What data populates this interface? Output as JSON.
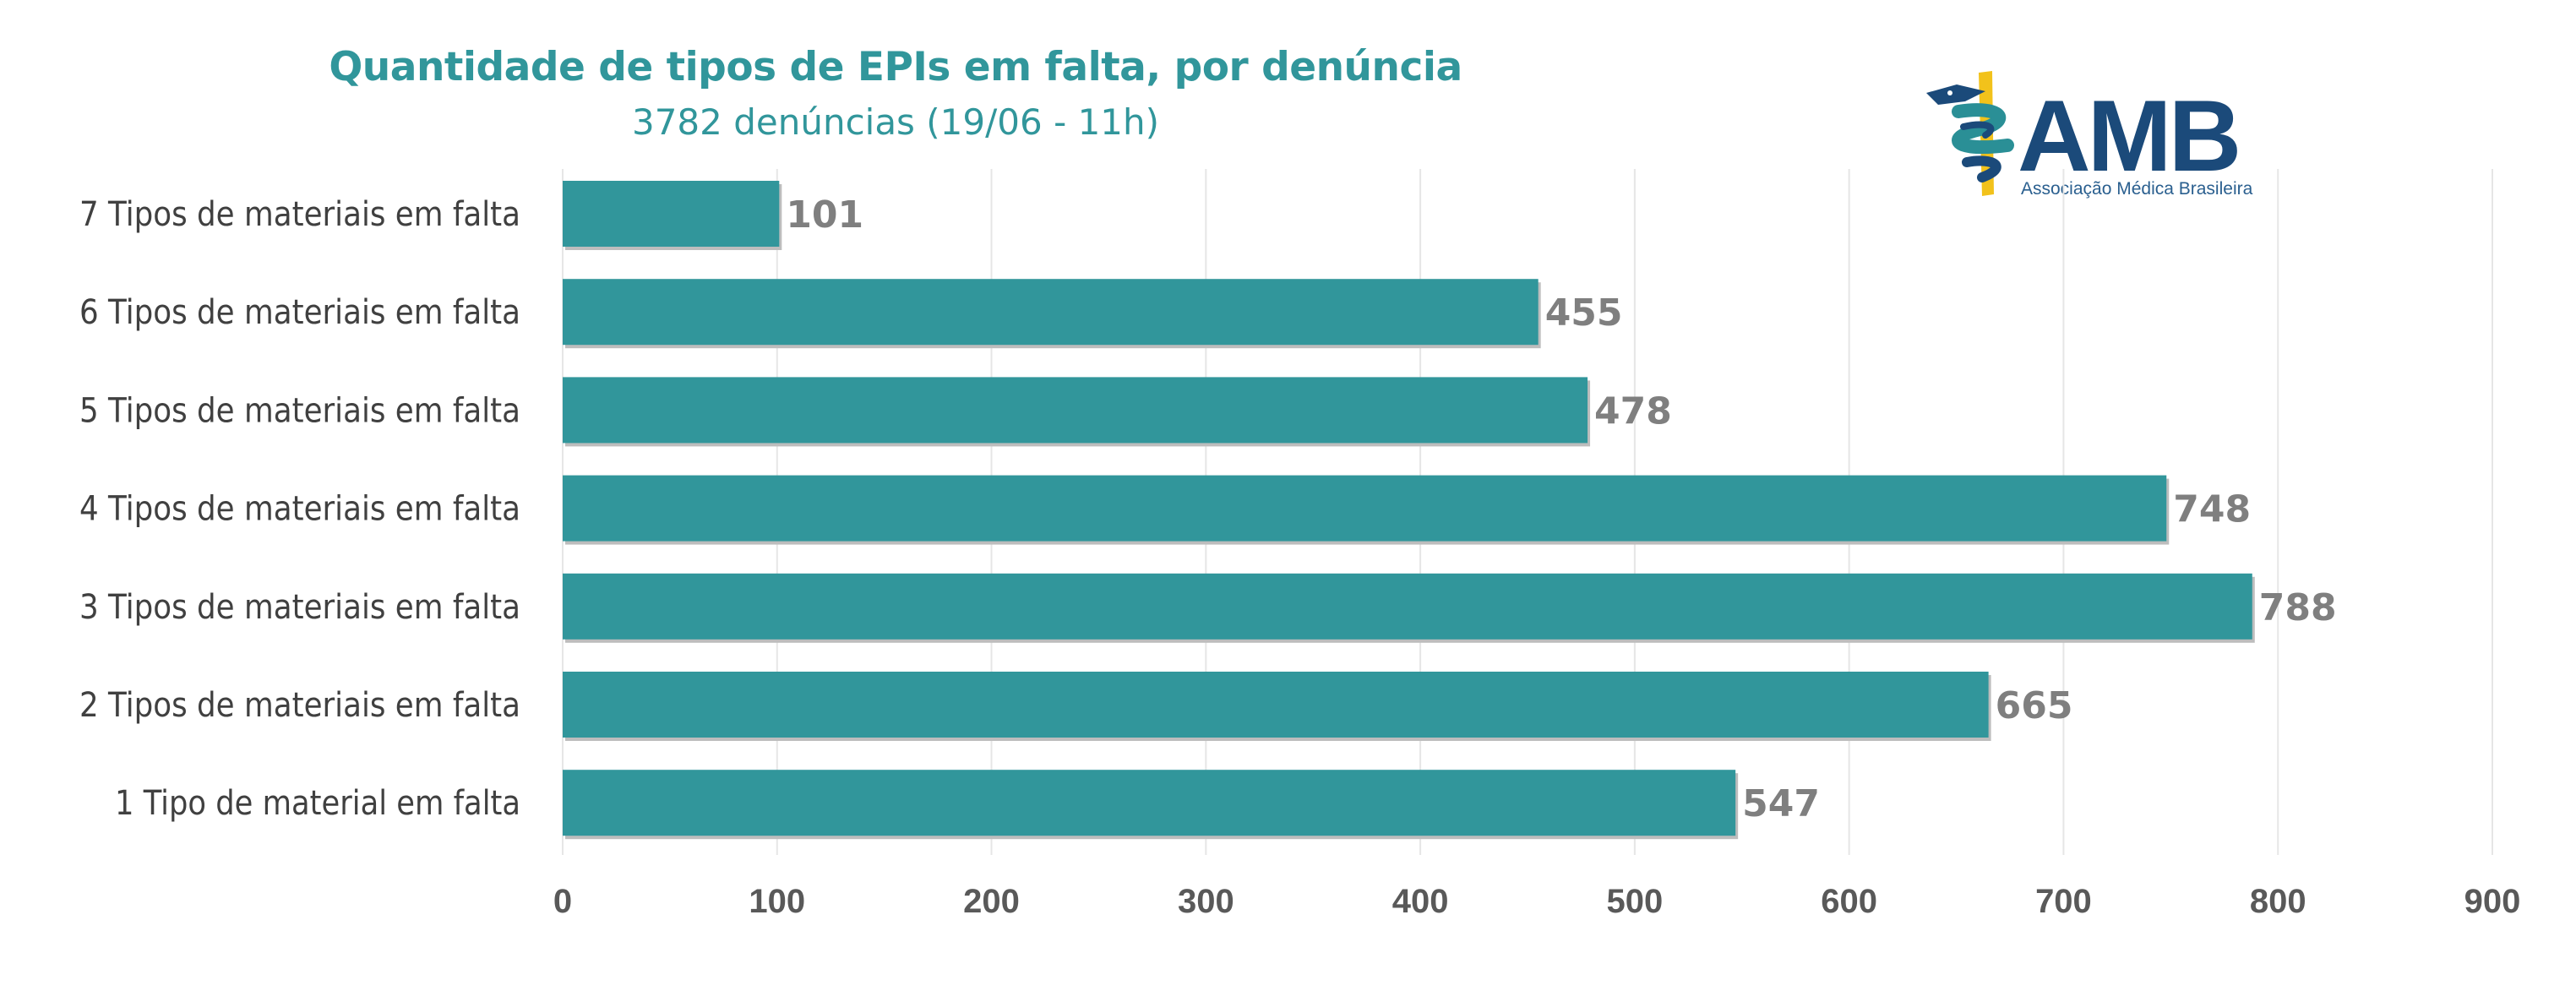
{
  "colors": {
    "bar": "#31969b",
    "title": "#31969b",
    "grid": "#e6e6e6",
    "logo_navy": "#1b4a7a",
    "logo_teal": "#2a8f96",
    "logo_gold": "#f2c21b"
  },
  "logo": {
    "name": "AMB",
    "tagline": "Associação Médica Brasileira",
    "icon": "caduceus-icon"
  },
  "chart_data": {
    "type": "bar",
    "orientation": "horizontal",
    "title": "Quantidade de tipos de EPIs em falta, por denúncia",
    "subtitle": "3782 denúncias (19/06 - 11h)",
    "categories": [
      "7 Tipos de materiais em falta",
      "6 Tipos de materiais em falta",
      "5 Tipos de materiais em falta",
      "4 Tipos de materiais em falta",
      "3 Tipos de materiais em falta",
      "2 Tipos de materiais em falta",
      "1 Tipo de material em falta"
    ],
    "values": [
      101,
      455,
      478,
      748,
      788,
      665,
      547
    ],
    "xlim": [
      0,
      900
    ],
    "xticks": [
      0,
      100,
      200,
      300,
      400,
      500,
      600,
      700,
      800,
      900
    ],
    "grid": true,
    "legend": "none",
    "xlabel": "",
    "ylabel": ""
  }
}
